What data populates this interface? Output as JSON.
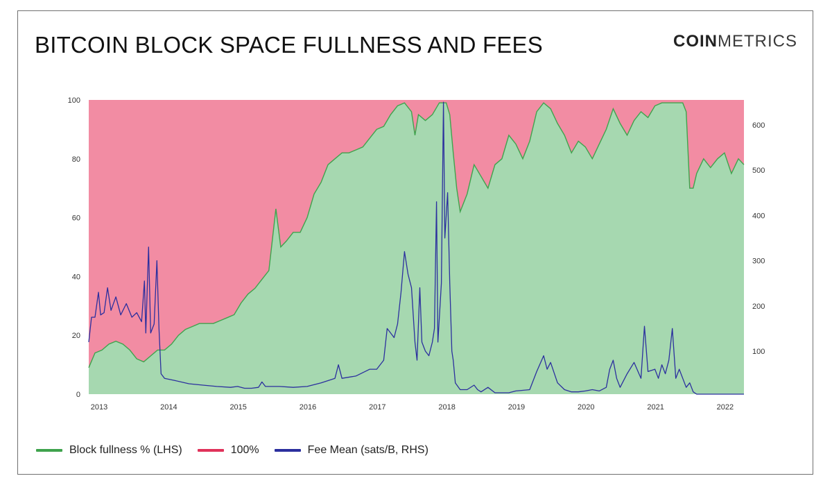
{
  "title": "BITCOIN BLOCK SPACE FULLNESS AND FEES",
  "brand": {
    "part1": "COIN",
    "part2": "METRICS"
  },
  "colors": {
    "fullness_line": "#3fa34d",
    "fullness_fill": "#a6d8b0",
    "hundred_fill": "#f28ca3",
    "hundred_line": "#e0325a",
    "fee_line": "#2b2f9e",
    "watermark": "#e6e6e6"
  },
  "chart_data": {
    "type": "area",
    "x_ticks": [
      "2013",
      "2014",
      "2015",
      "2016",
      "2017",
      "2018",
      "2019",
      "2020",
      "2021",
      "2022"
    ],
    "x_range": [
      2012.86,
      2022.28
    ],
    "y_left": {
      "ticks": [
        "0",
        "20",
        "40",
        "60",
        "80",
        "100"
      ],
      "range": [
        0,
        100
      ]
    },
    "y_right": {
      "ticks": [
        "100",
        "200",
        "300",
        "400",
        "500",
        "600"
      ],
      "range": [
        5,
        655
      ]
    },
    "legend": {
      "placement": "bottom-left"
    },
    "series": [
      {
        "name": "Block fullness % (LHS)",
        "axis": "left",
        "points": [
          [
            2012.86,
            9
          ],
          [
            2012.95,
            14
          ],
          [
            2013.05,
            15
          ],
          [
            2013.15,
            17
          ],
          [
            2013.25,
            18
          ],
          [
            2013.35,
            17
          ],
          [
            2013.45,
            15
          ],
          [
            2013.55,
            12
          ],
          [
            2013.65,
            11
          ],
          [
            2013.75,
            13
          ],
          [
            2013.85,
            15
          ],
          [
            2013.95,
            15
          ],
          [
            2014.05,
            17
          ],
          [
            2014.15,
            20
          ],
          [
            2014.25,
            22
          ],
          [
            2014.35,
            23
          ],
          [
            2014.45,
            24
          ],
          [
            2014.55,
            24
          ],
          [
            2014.65,
            24
          ],
          [
            2014.75,
            25
          ],
          [
            2014.85,
            26
          ],
          [
            2014.95,
            27
          ],
          [
            2015.05,
            31
          ],
          [
            2015.15,
            34
          ],
          [
            2015.25,
            36
          ],
          [
            2015.35,
            39
          ],
          [
            2015.45,
            42
          ],
          [
            2015.55,
            63
          ],
          [
            2015.62,
            50
          ],
          [
            2015.7,
            52
          ],
          [
            2015.8,
            55
          ],
          [
            2015.9,
            55
          ],
          [
            2016.0,
            60
          ],
          [
            2016.1,
            68
          ],
          [
            2016.2,
            72
          ],
          [
            2016.3,
            78
          ],
          [
            2016.4,
            80
          ],
          [
            2016.5,
            82
          ],
          [
            2016.6,
            82
          ],
          [
            2016.7,
            83
          ],
          [
            2016.8,
            84
          ],
          [
            2016.9,
            87
          ],
          [
            2017.0,
            90
          ],
          [
            2017.1,
            91
          ],
          [
            2017.2,
            95
          ],
          [
            2017.3,
            98
          ],
          [
            2017.4,
            99
          ],
          [
            2017.5,
            96
          ],
          [
            2017.55,
            88
          ],
          [
            2017.6,
            95
          ],
          [
            2017.7,
            93
          ],
          [
            2017.8,
            95
          ],
          [
            2017.9,
            99
          ],
          [
            2018.0,
            99
          ],
          [
            2018.05,
            95
          ],
          [
            2018.1,
            82
          ],
          [
            2018.15,
            70
          ],
          [
            2018.2,
            62
          ],
          [
            2018.3,
            68
          ],
          [
            2018.4,
            78
          ],
          [
            2018.5,
            74
          ],
          [
            2018.6,
            70
          ],
          [
            2018.7,
            78
          ],
          [
            2018.8,
            80
          ],
          [
            2018.9,
            88
          ],
          [
            2019.0,
            85
          ],
          [
            2019.1,
            80
          ],
          [
            2019.2,
            86
          ],
          [
            2019.3,
            96
          ],
          [
            2019.4,
            99
          ],
          [
            2019.5,
            97
          ],
          [
            2019.6,
            92
          ],
          [
            2019.7,
            88
          ],
          [
            2019.8,
            82
          ],
          [
            2019.9,
            86
          ],
          [
            2020.0,
            84
          ],
          [
            2020.1,
            80
          ],
          [
            2020.2,
            85
          ],
          [
            2020.3,
            90
          ],
          [
            2020.4,
            97
          ],
          [
            2020.5,
            92
          ],
          [
            2020.6,
            88
          ],
          [
            2020.7,
            93
          ],
          [
            2020.8,
            96
          ],
          [
            2020.9,
            94
          ],
          [
            2021.0,
            98
          ],
          [
            2021.1,
            99
          ],
          [
            2021.2,
            99
          ],
          [
            2021.3,
            99
          ],
          [
            2021.4,
            99
          ],
          [
            2021.45,
            96
          ],
          [
            2021.5,
            70
          ],
          [
            2021.55,
            70
          ],
          [
            2021.6,
            75
          ],
          [
            2021.7,
            80
          ],
          [
            2021.8,
            77
          ],
          [
            2021.9,
            80
          ],
          [
            2022.0,
            82
          ],
          [
            2022.1,
            75
          ],
          [
            2022.2,
            80
          ],
          [
            2022.28,
            78
          ]
        ]
      },
      {
        "name": "100%",
        "axis": "left",
        "value": 100
      },
      {
        "name": "Fee Mean  (sats/B, RHS)",
        "axis": "right",
        "points": [
          [
            2012.86,
            120
          ],
          [
            2012.9,
            175
          ],
          [
            2012.95,
            175
          ],
          [
            2013.0,
            230
          ],
          [
            2013.03,
            180
          ],
          [
            2013.08,
            185
          ],
          [
            2013.13,
            240
          ],
          [
            2013.18,
            190
          ],
          [
            2013.25,
            220
          ],
          [
            2013.32,
            180
          ],
          [
            2013.4,
            205
          ],
          [
            2013.48,
            175
          ],
          [
            2013.55,
            185
          ],
          [
            2013.62,
            165
          ],
          [
            2013.66,
            255
          ],
          [
            2013.68,
            140
          ],
          [
            2013.72,
            330
          ],
          [
            2013.75,
            140
          ],
          [
            2013.8,
            160
          ],
          [
            2013.84,
            300
          ],
          [
            2013.87,
            150
          ],
          [
            2013.9,
            50
          ],
          [
            2013.95,
            40
          ],
          [
            2014.1,
            35
          ],
          [
            2014.3,
            28
          ],
          [
            2014.5,
            25
          ],
          [
            2014.7,
            22
          ],
          [
            2014.9,
            20
          ],
          [
            2015.0,
            22
          ],
          [
            2015.1,
            18
          ],
          [
            2015.2,
            18
          ],
          [
            2015.3,
            20
          ],
          [
            2015.35,
            32
          ],
          [
            2015.4,
            22
          ],
          [
            2015.6,
            22
          ],
          [
            2015.8,
            20
          ],
          [
            2016.0,
            22
          ],
          [
            2016.2,
            30
          ],
          [
            2016.4,
            40
          ],
          [
            2016.45,
            70
          ],
          [
            2016.5,
            40
          ],
          [
            2016.7,
            45
          ],
          [
            2016.9,
            60
          ],
          [
            2017.0,
            60
          ],
          [
            2017.1,
            80
          ],
          [
            2017.15,
            150
          ],
          [
            2017.2,
            140
          ],
          [
            2017.25,
            130
          ],
          [
            2017.3,
            160
          ],
          [
            2017.35,
            230
          ],
          [
            2017.4,
            320
          ],
          [
            2017.45,
            270
          ],
          [
            2017.5,
            240
          ],
          [
            2017.55,
            120
          ],
          [
            2017.58,
            80
          ],
          [
            2017.62,
            240
          ],
          [
            2017.65,
            120
          ],
          [
            2017.7,
            100
          ],
          [
            2017.75,
            90
          ],
          [
            2017.8,
            120
          ],
          [
            2017.83,
            150
          ],
          [
            2017.86,
            430
          ],
          [
            2017.88,
            120
          ],
          [
            2017.93,
            250
          ],
          [
            2017.96,
            650
          ],
          [
            2017.98,
            350
          ],
          [
            2018.02,
            450
          ],
          [
            2018.05,
            250
          ],
          [
            2018.08,
            100
          ],
          [
            2018.1,
            80
          ],
          [
            2018.13,
            30
          ],
          [
            2018.2,
            15
          ],
          [
            2018.3,
            15
          ],
          [
            2018.4,
            25
          ],
          [
            2018.45,
            15
          ],
          [
            2018.5,
            10
          ],
          [
            2018.6,
            20
          ],
          [
            2018.7,
            8
          ],
          [
            2018.9,
            8
          ],
          [
            2019.0,
            12
          ],
          [
            2019.2,
            15
          ],
          [
            2019.3,
            55
          ],
          [
            2019.4,
            90
          ],
          [
            2019.45,
            60
          ],
          [
            2019.5,
            75
          ],
          [
            2019.6,
            30
          ],
          [
            2019.7,
            15
          ],
          [
            2019.8,
            10
          ],
          [
            2019.9,
            10
          ],
          [
            2020.0,
            12
          ],
          [
            2020.1,
            15
          ],
          [
            2020.2,
            12
          ],
          [
            2020.3,
            20
          ],
          [
            2020.35,
            60
          ],
          [
            2020.4,
            80
          ],
          [
            2020.45,
            40
          ],
          [
            2020.5,
            20
          ],
          [
            2020.6,
            50
          ],
          [
            2020.7,
            75
          ],
          [
            2020.8,
            40
          ],
          [
            2020.85,
            155
          ],
          [
            2020.9,
            55
          ],
          [
            2021.0,
            60
          ],
          [
            2021.05,
            40
          ],
          [
            2021.1,
            70
          ],
          [
            2021.15,
            50
          ],
          [
            2021.2,
            80
          ],
          [
            2021.25,
            150
          ],
          [
            2021.3,
            40
          ],
          [
            2021.35,
            60
          ],
          [
            2021.4,
            40
          ],
          [
            2021.45,
            20
          ],
          [
            2021.5,
            30
          ],
          [
            2021.55,
            10
          ],
          [
            2021.6,
            5
          ],
          [
            2021.8,
            5
          ],
          [
            2022.0,
            5
          ],
          [
            2022.28,
            5
          ]
        ]
      }
    ]
  },
  "legend": [
    {
      "label": "Block fullness % (LHS)"
    },
    {
      "label": "100%"
    },
    {
      "label": "Fee Mean  (sats/B, RHS)"
    }
  ]
}
